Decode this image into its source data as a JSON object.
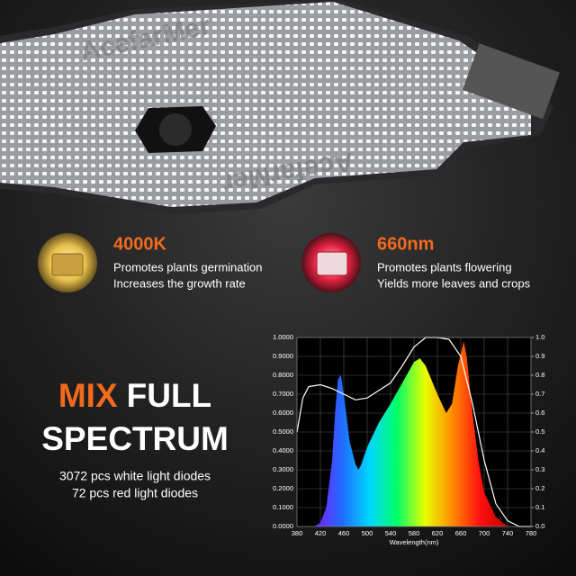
{
  "panel": {
    "brand": "AcefarMer"
  },
  "features": [
    {
      "title": "4000K",
      "lines": [
        "Promotes plants germination",
        "Increases the growth rate"
      ]
    },
    {
      "title": "660nm",
      "lines": [
        "Promotes plants flowering",
        "Yields more leaves and crops"
      ]
    }
  ],
  "headline": {
    "accent": "MIX",
    "rest": "FULL",
    "line2": "SPECTRUM"
  },
  "diodes": [
    "3072 pcs white light diodes",
    "72 pcs red light diodes"
  ],
  "chart_data": {
    "type": "area",
    "xlabel": "Wavelength(nm)",
    "xlim": [
      380,
      780
    ],
    "xticks": [
      380,
      420,
      460,
      500,
      540,
      580,
      620,
      660,
      700,
      740,
      780
    ],
    "ylim": [
      0,
      1
    ],
    "yticks": [
      {
        "value": 0,
        "label": "0.0000"
      },
      {
        "value": 0.1,
        "label": "0.1000"
      },
      {
        "value": 0.2,
        "label": "0.2000"
      },
      {
        "value": 0.3,
        "label": "0.3000"
      },
      {
        "value": 0.4,
        "label": "0.4000"
      },
      {
        "value": 0.5,
        "label": "0.5000"
      },
      {
        "value": 0.6,
        "label": "0.6000"
      },
      {
        "value": 0.7,
        "label": "0.7000"
      },
      {
        "value": 0.8,
        "label": "0.8000"
      },
      {
        "value": 0.9,
        "label": "0.9000"
      },
      {
        "value": 1,
        "label": "1.0000"
      }
    ],
    "y2lim": [
      0,
      1
    ],
    "y2ticks": [
      {
        "value": 0,
        "label": "0.0"
      },
      0.1,
      0.2,
      0.3,
      0.4,
      0.5,
      0.6,
      0.7,
      0.8,
      0.9,
      {
        "value": 1,
        "label": "1.0"
      }
    ],
    "grid": true,
    "series": [
      {
        "gradient": [
          "#7a1cff",
          "#1f6bff",
          "#00d8ff",
          "#00ff66",
          "#e8ff00",
          "#ff8a00",
          "#ff1010",
          "#c00000"
        ],
        "x": [
          410,
          420,
          430,
          440,
          445,
          450,
          455,
          460,
          470,
          480,
          485,
          490,
          500,
          520,
          540,
          560,
          580,
          590,
          600,
          620,
          635,
          645,
          655,
          665,
          670,
          680,
          690,
          700,
          720,
          740
        ],
        "values": [
          0,
          0.02,
          0.1,
          0.35,
          0.6,
          0.78,
          0.8,
          0.7,
          0.45,
          0.33,
          0.3,
          0.33,
          0.42,
          0.55,
          0.65,
          0.76,
          0.87,
          0.89,
          0.85,
          0.7,
          0.6,
          0.65,
          0.85,
          0.98,
          0.9,
          0.6,
          0.35,
          0.18,
          0.05,
          0
        ]
      },
      {
        "axis": "y2",
        "color": "#ffffff",
        "x": [
          380,
          390,
          400,
          420,
          440,
          460,
          480,
          500,
          520,
          540,
          560,
          580,
          600,
          620,
          640,
          660,
          680,
          700,
          720,
          740,
          760,
          780
        ],
        "values": [
          0.5,
          0.68,
          0.74,
          0.75,
          0.73,
          0.7,
          0.67,
          0.68,
          0.72,
          0.76,
          0.85,
          0.95,
          1,
          1,
          0.99,
          0.9,
          0.65,
          0.35,
          0.12,
          0.03,
          0,
          0
        ]
      }
    ]
  }
}
